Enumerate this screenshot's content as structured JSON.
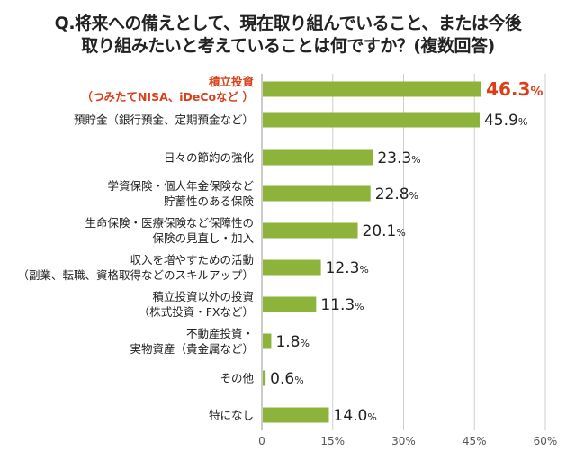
{
  "chart_data": {
    "type": "bar",
    "orientation": "horizontal",
    "title_lines": [
      "Q.将来への備えとして、現在取り組んでいること、または今後",
      "取り組みたいと考えていることは何ですか？(複数回答)"
    ],
    "categories": [
      [
        "積立投資",
        "（つみたてNISA、iDeCoなど ）"
      ],
      [
        "預貯金（銀行預金、定期預金など）"
      ],
      [
        "日々の節約の強化"
      ],
      [
        "学資保険・個人年金保険など",
        "貯蓄性のある保険"
      ],
      [
        "生命保険・医療保険など保障性の",
        "保険の見直し・加入"
      ],
      [
        "収入を増やすための活動",
        "（副業、転職、資格取得などのスキルアップ）"
      ],
      [
        "積立投資以外の投資",
        "（株式投資・FXなど）"
      ],
      [
        "不動産投資・",
        "実物資産（貴金属など）"
      ],
      [
        "その他"
      ],
      [
        "特になし"
      ]
    ],
    "values": [
      46.3,
      45.9,
      23.3,
      22.8,
      20.1,
      12.3,
      11.3,
      1.8,
      0.6,
      14.0
    ],
    "value_labels": [
      "46.3",
      "45.9",
      "23.3",
      "22.8",
      "20.1",
      "12.3",
      "11.3",
      "1.8",
      "0.6",
      "14.0"
    ],
    "unit": "%",
    "highlight_index": 0,
    "xlim": [
      0,
      60
    ],
    "xticks": [
      "0",
      "15%",
      "30%",
      "45%",
      "60%"
    ],
    "xtick_values": [
      0,
      15,
      30,
      45,
      60
    ],
    "grid": true,
    "colors": {
      "bar": "#8db33a",
      "highlight_text": "#d9401a",
      "grid": "#cfcfcf"
    }
  }
}
